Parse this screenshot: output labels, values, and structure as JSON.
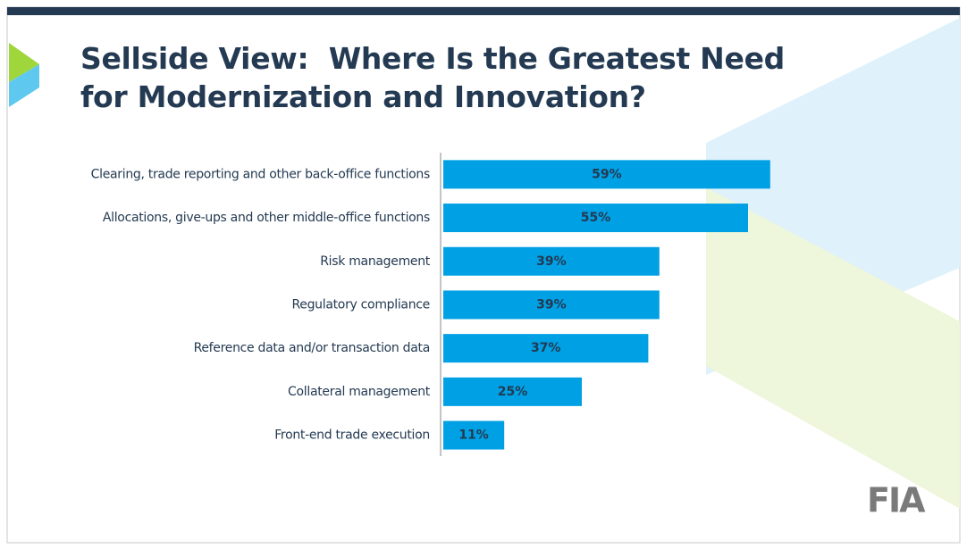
{
  "chart_data": {
    "type": "bar",
    "orientation": "horizontal",
    "title": [
      "Sellside View:  Where Is the Greatest Need",
      "for Modernization and Innovation?"
    ],
    "categories": [
      "Clearing, trade reporting and other back-office functions",
      "Allocations, give-ups and other middle-office functions",
      "Risk management",
      "Regulatory compliance",
      "Reference data and/or transaction data",
      "Collateral management",
      "Front-end trade execution"
    ],
    "values": [
      59,
      55,
      39,
      39,
      37,
      25,
      11
    ],
    "value_labels": [
      "59%",
      "55%",
      "39%",
      "39%",
      "37%",
      "25%",
      "11%"
    ],
    "color": "#00a0e4",
    "logo": "FIA"
  }
}
